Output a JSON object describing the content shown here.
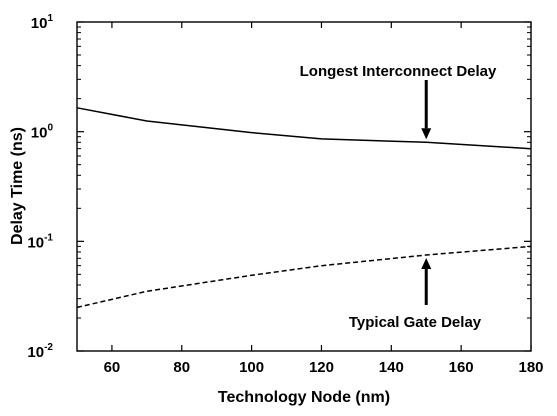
{
  "chart_data": {
    "type": "line",
    "xlabel": "Technology Node (nm)",
    "ylabel": "Delay Time (ns)",
    "xlim": [
      50,
      180
    ],
    "ylim": [
      0.01,
      10
    ],
    "y_scale": "log",
    "grid": false,
    "legend": "none",
    "x_ticks": [
      60,
      80,
      100,
      120,
      140,
      160,
      180
    ],
    "y_ticks": [
      {
        "value": 0.01,
        "base": "10",
        "exp": "-2"
      },
      {
        "value": 0.1,
        "base": "10",
        "exp": "-1"
      },
      {
        "value": 1,
        "base": "10",
        "exp": "0"
      },
      {
        "value": 10,
        "base": "10",
        "exp": "1"
      }
    ],
    "series": [
      {
        "style": "solid",
        "x": [
          50,
          70,
          100,
          120,
          150,
          180
        ],
        "y": [
          1.65,
          1.25,
          0.98,
          0.86,
          0.8,
          0.7
        ]
      },
      {
        "style": "dashed",
        "x": [
          50,
          70,
          100,
          120,
          150,
          180
        ],
        "y": [
          0.025,
          0.035,
          0.049,
          0.06,
          0.075,
          0.09
        ]
      }
    ],
    "annotations": [
      {
        "text": "Longest Interconnect Delay",
        "target_x": 150,
        "target_y": 0.8,
        "placement": "above"
      },
      {
        "text": "Typical Gate Delay",
        "target_x": 150,
        "target_y": 0.075,
        "placement": "below"
      }
    ]
  }
}
